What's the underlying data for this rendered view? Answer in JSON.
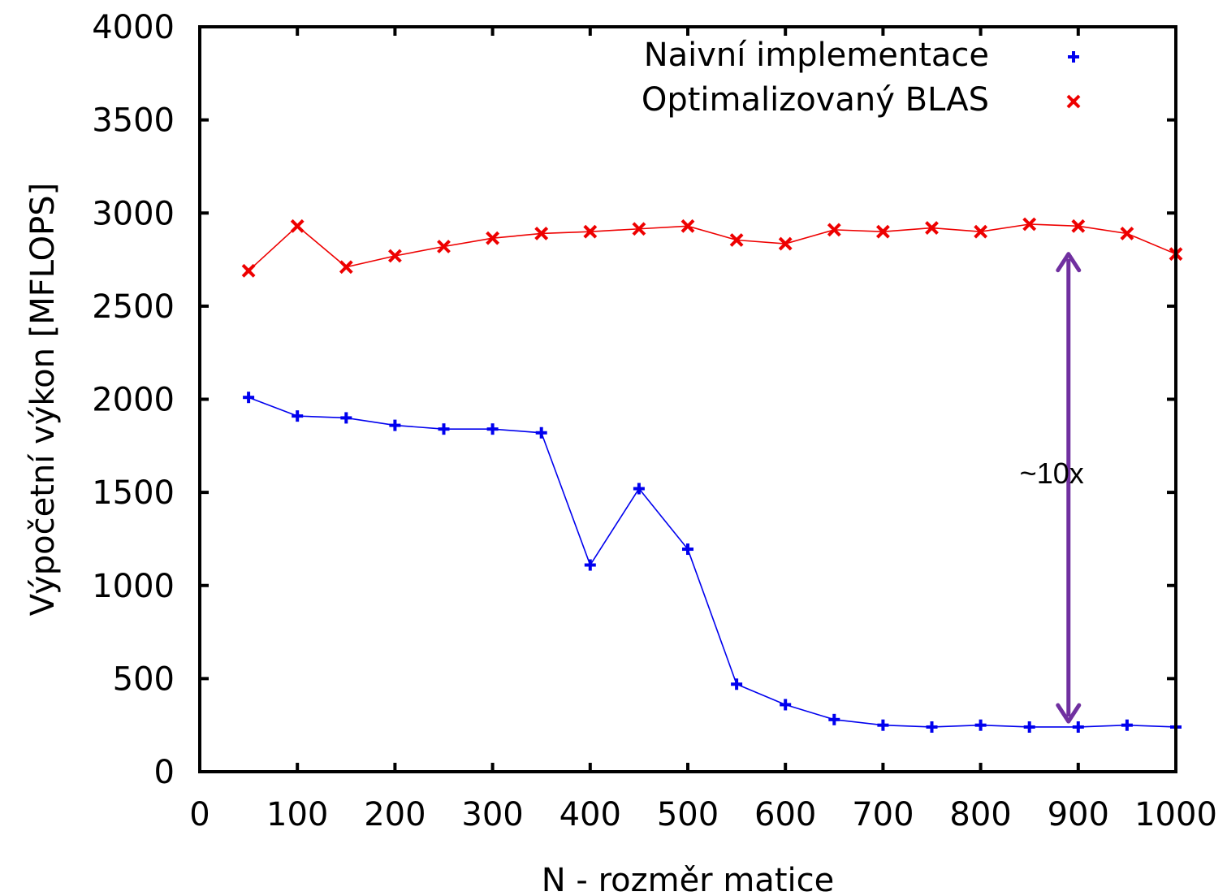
{
  "chart_data": {
    "type": "line",
    "xlabel": "N - rozměr matice",
    "ylabel": "Výpočetní výkon [MFLOPS]",
    "xlim": [
      0,
      1000
    ],
    "ylim": [
      0,
      4000
    ],
    "xticks": [
      0,
      100,
      200,
      300,
      400,
      500,
      600,
      700,
      800,
      900,
      1000
    ],
    "yticks": [
      0,
      500,
      1000,
      1500,
      2000,
      2500,
      3000,
      3500,
      4000
    ],
    "grid": false,
    "legend_position": "top-right",
    "series": [
      {
        "name": "Naivní implementace",
        "color": "#0000ee",
        "marker": "plus",
        "x": [
          50,
          100,
          150,
          200,
          250,
          300,
          350,
          400,
          450,
          500,
          550,
          600,
          650,
          700,
          750,
          800,
          850,
          900,
          950,
          1000
        ],
        "y": [
          2010,
          1910,
          1900,
          1860,
          1840,
          1840,
          1820,
          1110,
          1520,
          1195,
          470,
          360,
          280,
          250,
          240,
          250,
          240,
          240,
          250,
          240
        ]
      },
      {
        "name": "Optimalizovaný BLAS",
        "color": "#ee0000",
        "marker": "x",
        "x": [
          50,
          100,
          150,
          200,
          250,
          300,
          350,
          400,
          450,
          500,
          550,
          600,
          650,
          700,
          750,
          800,
          850,
          900,
          950,
          1000
        ],
        "y": [
          2690,
          2930,
          2710,
          2770,
          2820,
          2865,
          2890,
          2900,
          2915,
          2930,
          2855,
          2835,
          2910,
          2900,
          2920,
          2900,
          2940,
          2930,
          2890,
          2780
        ]
      }
    ],
    "annotations": [
      {
        "text": "~10x",
        "type": "double-arrow",
        "color": "#7030a0",
        "x": 890,
        "y_from": 270,
        "y_to": 2780,
        "text_x": 840,
        "text_y": 1600
      }
    ]
  }
}
